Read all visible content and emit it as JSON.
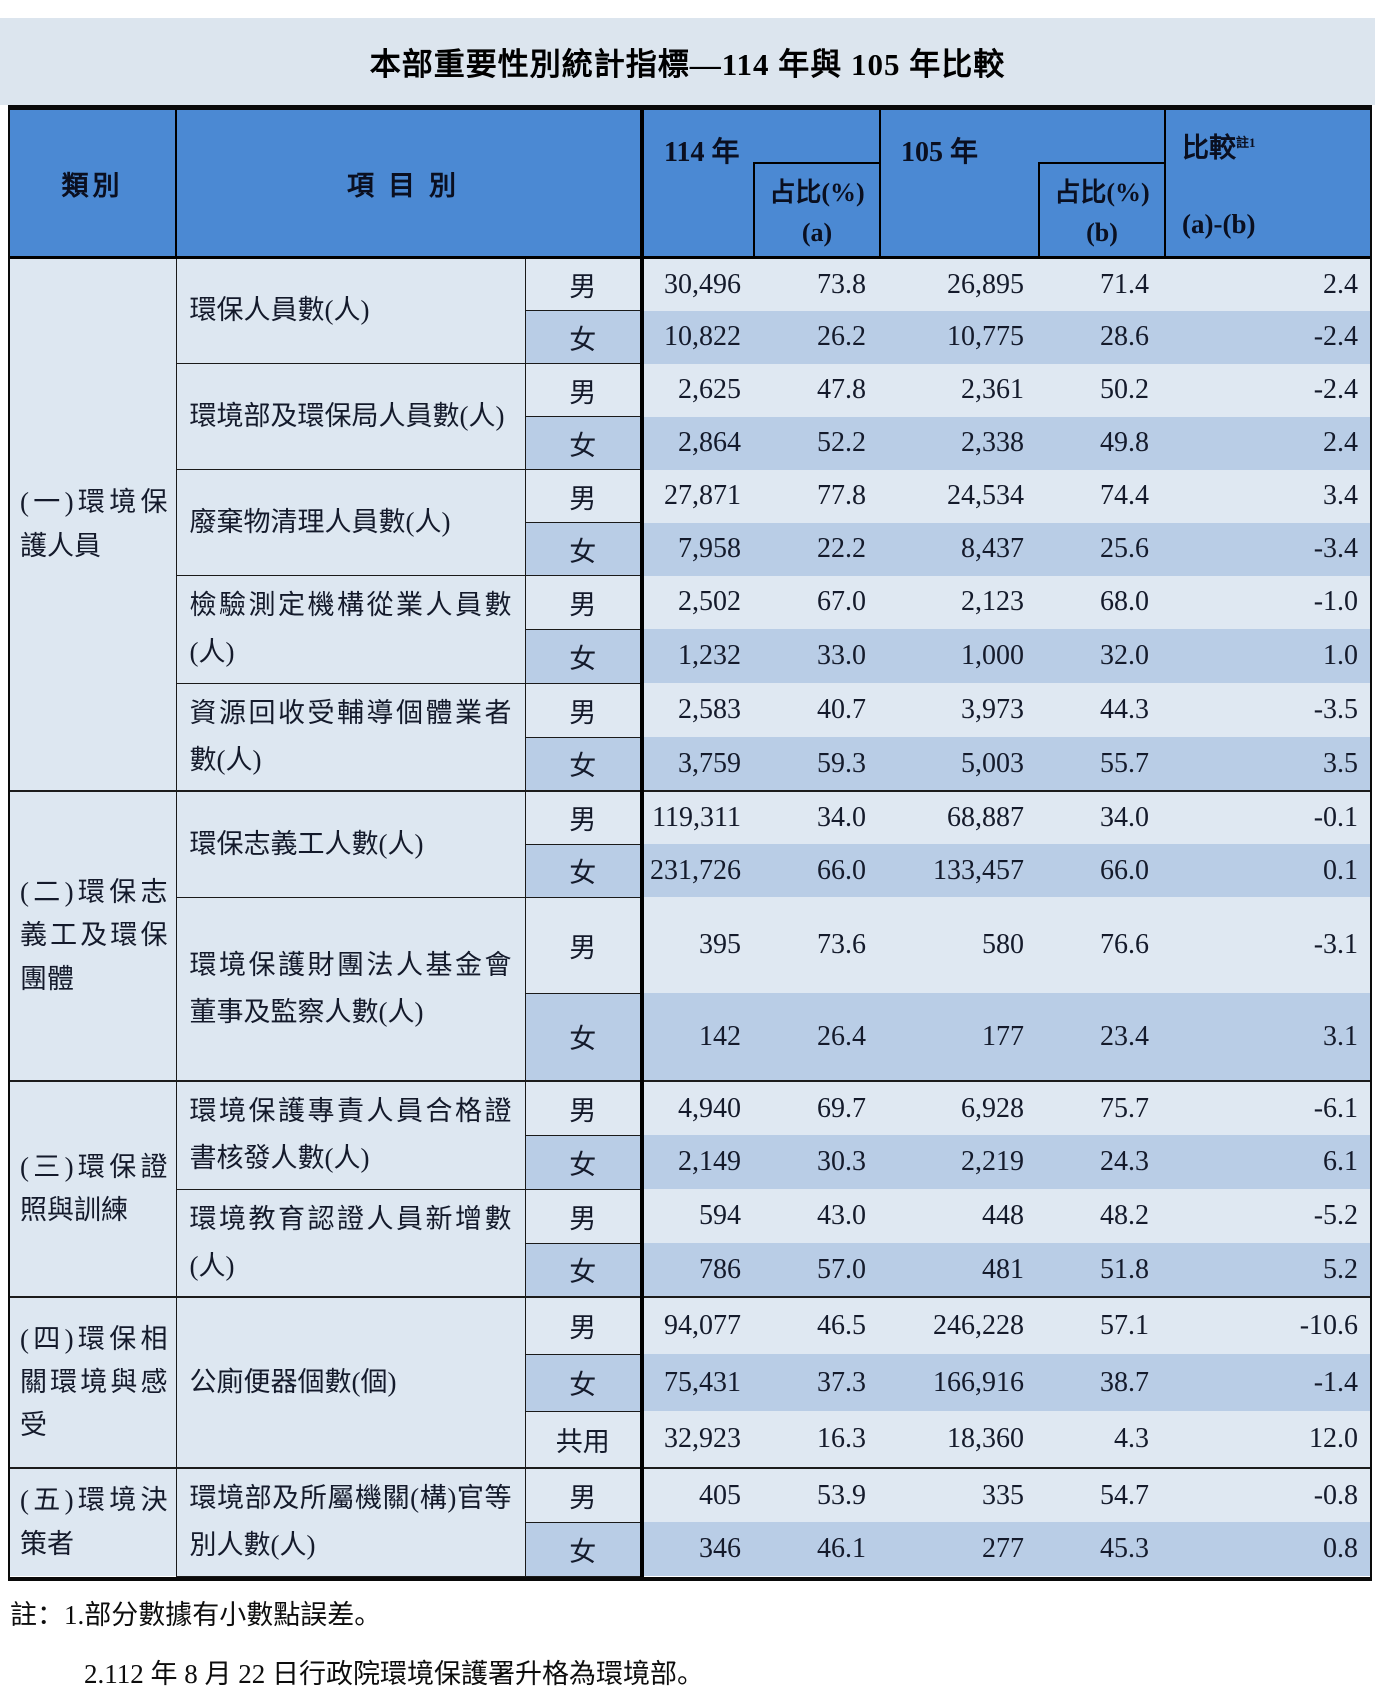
{
  "title": "本部重要性別統計指標—114 年與 105 年比較",
  "header": {
    "col_category": "類別",
    "col_item": "項目別",
    "col_y114": "114 年",
    "col_y105": "105 年",
    "col_share": "占比(%)",
    "col_share_a": "(a)",
    "col_share_b": "(b)",
    "col_compare": "比較",
    "col_compare_sup": "註1",
    "col_compare_formula": "(a)-(b)"
  },
  "groups": [
    {
      "category": "(一)環境保護人員",
      "items": [
        {
          "name": "環保人員數(人)",
          "rows": [
            {
              "gender": "男",
              "v114": "30,496",
              "a": "73.8",
              "v105": "26,895",
              "b": "71.4",
              "diff": "2.4"
            },
            {
              "gender": "女",
              "v114": "10,822",
              "a": "26.2",
              "v105": "10,775",
              "b": "28.6",
              "diff": "-2.4"
            }
          ]
        },
        {
          "name": "環境部及環保局人員數(人)",
          "rows": [
            {
              "gender": "男",
              "v114": "2,625",
              "a": "47.8",
              "v105": "2,361",
              "b": "50.2",
              "diff": "-2.4"
            },
            {
              "gender": "女",
              "v114": "2,864",
              "a": "52.2",
              "v105": "2,338",
              "b": "49.8",
              "diff": "2.4"
            }
          ]
        },
        {
          "name": "廢棄物清理人員數(人)",
          "rows": [
            {
              "gender": "男",
              "v114": "27,871",
              "a": "77.8",
              "v105": "24,534",
              "b": "74.4",
              "diff": "3.4"
            },
            {
              "gender": "女",
              "v114": "7,958",
              "a": "22.2",
              "v105": "8,437",
              "b": "25.6",
              "diff": "-3.4"
            }
          ]
        },
        {
          "name": "檢驗測定機構從業人員數(人)",
          "rows": [
            {
              "gender": "男",
              "v114": "2,502",
              "a": "67.0",
              "v105": "2,123",
              "b": "68.0",
              "diff": "-1.0"
            },
            {
              "gender": "女",
              "v114": "1,232",
              "a": "33.0",
              "v105": "1,000",
              "b": "32.0",
              "diff": "1.0"
            }
          ]
        },
        {
          "name": "資源回收受輔導個體業者數(人)",
          "rows": [
            {
              "gender": "男",
              "v114": "2,583",
              "a": "40.7",
              "v105": "3,973",
              "b": "44.3",
              "diff": "-3.5"
            },
            {
              "gender": "女",
              "v114": "3,759",
              "a": "59.3",
              "v105": "5,003",
              "b": "55.7",
              "diff": "3.5"
            }
          ]
        }
      ]
    },
    {
      "category": "(二)環保志義工及環保團體",
      "items": [
        {
          "name": "環保志義工人數(人)",
          "rows": [
            {
              "gender": "男",
              "v114": "119,311",
              "a": "34.0",
              "v105": "68,887",
              "b": "34.0",
              "diff": "-0.1"
            },
            {
              "gender": "女",
              "v114": "231,726",
              "a": "66.0",
              "v105": "133,457",
              "b": "66.0",
              "diff": "0.1"
            }
          ]
        },
        {
          "name": "環境保護財團法人基金會董事及監察人數(人)",
          "rows": [
            {
              "gender": "男",
              "v114": "395",
              "a": "73.6",
              "v105": "580",
              "b": "76.6",
              "diff": "-3.1"
            },
            {
              "gender": "女",
              "v114": "142",
              "a": "26.4",
              "v105": "177",
              "b": "23.4",
              "diff": "3.1"
            }
          ]
        }
      ]
    },
    {
      "category": "(三)環保證照與訓練",
      "items": [
        {
          "name": "環境保護專責人員合格證書核發人數(人)",
          "rows": [
            {
              "gender": "男",
              "v114": "4,940",
              "a": "69.7",
              "v105": "6,928",
              "b": "75.7",
              "diff": "-6.1"
            },
            {
              "gender": "女",
              "v114": "2,149",
              "a": "30.3",
              "v105": "2,219",
              "b": "24.3",
              "diff": "6.1"
            }
          ]
        },
        {
          "name": "環境教育認證人員新增數(人)",
          "rows": [
            {
              "gender": "男",
              "v114": "594",
              "a": "43.0",
              "v105": "448",
              "b": "48.2",
              "diff": "-5.2"
            },
            {
              "gender": "女",
              "v114": "786",
              "a": "57.0",
              "v105": "481",
              "b": "51.8",
              "diff": "5.2"
            }
          ]
        }
      ]
    },
    {
      "category": "(四)環保相關環境與感受",
      "items": [
        {
          "name": "公廁便器個數(個)",
          "rows": [
            {
              "gender": "男",
              "v114": "94,077",
              "a": "46.5",
              "v105": "246,228",
              "b": "57.1",
              "diff": "-10.6"
            },
            {
              "gender": "女",
              "v114": "75,431",
              "a": "37.3",
              "v105": "166,916",
              "b": "38.7",
              "diff": "-1.4"
            },
            {
              "gender": "共用",
              "v114": "32,923",
              "a": "16.3",
              "v105": "18,360",
              "b": "4.3",
              "diff": "12.0"
            }
          ]
        }
      ]
    },
    {
      "category": "(五)環境決策者",
      "items": [
        {
          "name": "環境部及所屬機關(構)官等別人數(人)",
          "rows": [
            {
              "gender": "男",
              "v114": "405",
              "a": "53.9",
              "v105": "335",
              "b": "54.7",
              "diff": "-0.8"
            },
            {
              "gender": "女",
              "v114": "346",
              "a": "46.1",
              "v105": "277",
              "b": "45.3",
              "diff": "0.8"
            }
          ]
        }
      ]
    }
  ],
  "notes": [
    "註：1.部分數據有小數點誤差。",
    "2.112 年 8 月 22 日行政院環境保護署升格為環境部。"
  ],
  "colors": {
    "header_blue": "#4b89d3",
    "row_light": "#dfe8f2",
    "row_dark": "#b9cde6",
    "panel_bg": "#dce5ee"
  }
}
